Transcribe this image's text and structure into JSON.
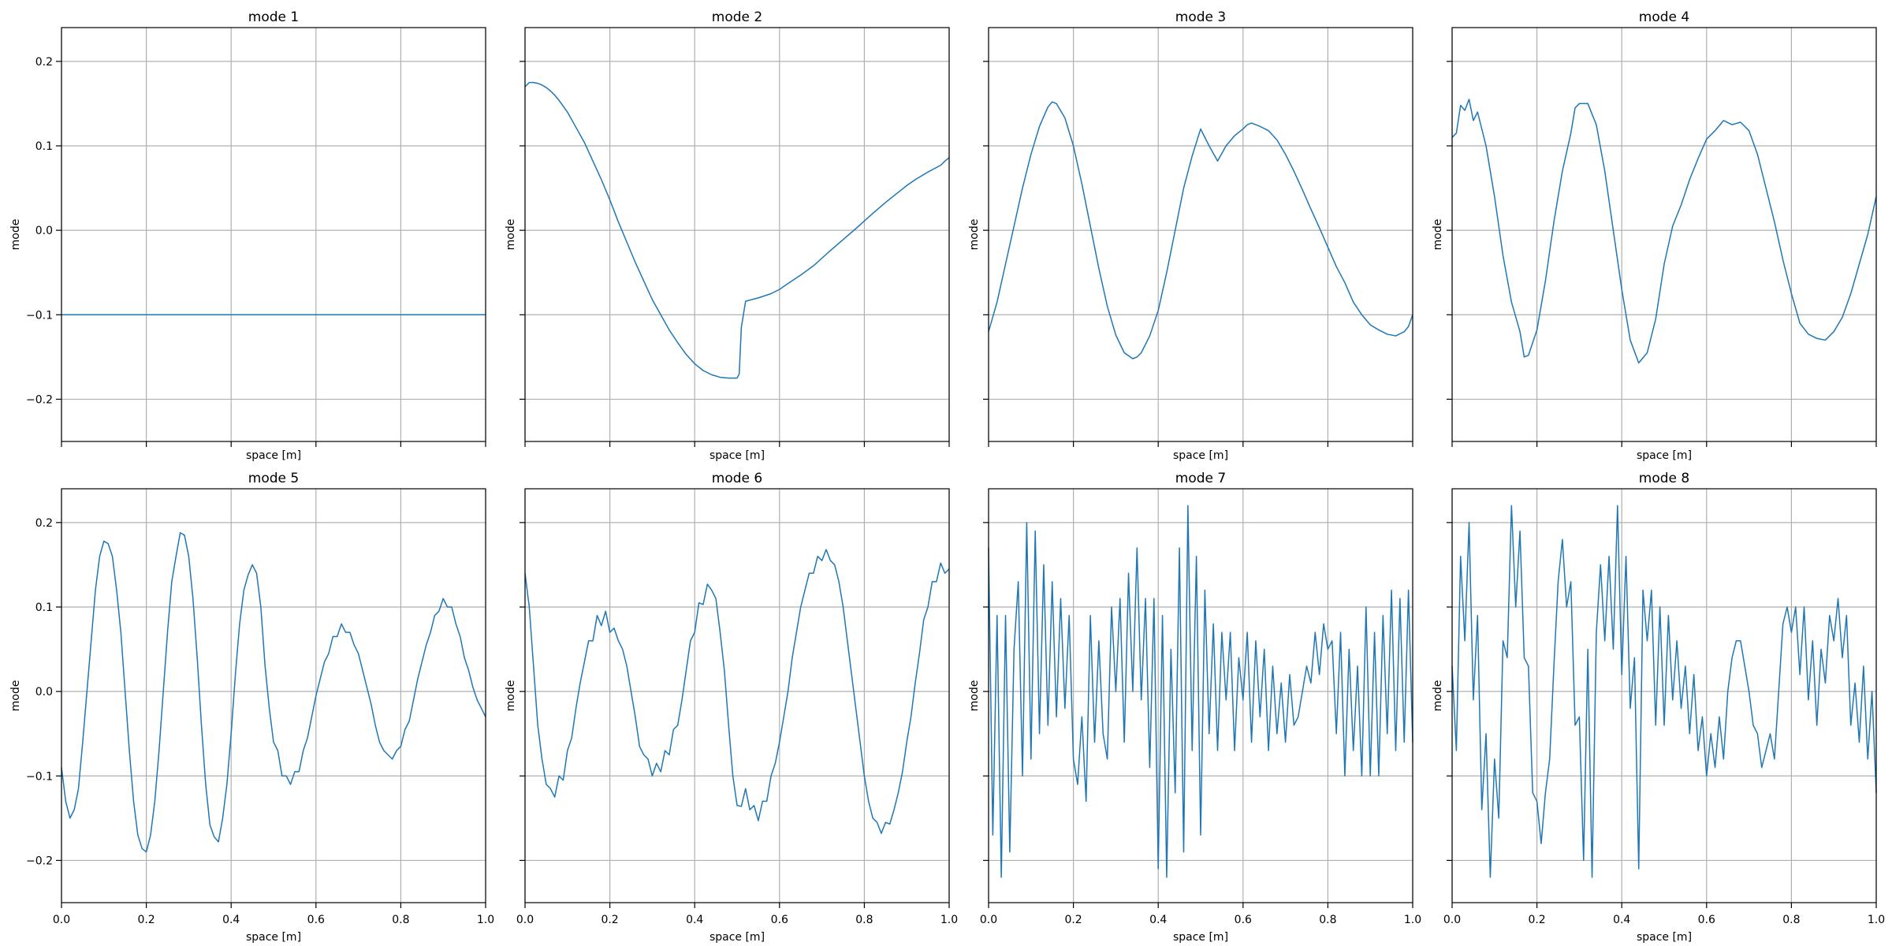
{
  "figure": {
    "layout": "2 rows x 4 columns, shared x and y axes",
    "line_color": "#1f77b4",
    "grid": true,
    "xlim": [
      0.0,
      1.0
    ],
    "ylim": [
      -0.25,
      0.24
    ],
    "xticks": [
      0.0,
      0.2,
      0.4,
      0.6,
      0.8,
      1.0
    ],
    "xtick_labels": [
      "0.0",
      "0.2",
      "0.4",
      "0.6",
      "0.8",
      "1.0"
    ],
    "yticks": [
      -0.2,
      -0.1,
      0.0,
      0.1,
      0.2
    ],
    "ytick_labels": [
      "−0.2",
      "−0.1",
      "0.0",
      "0.1",
      "0.2"
    ]
  },
  "chart_data": [
    {
      "type": "line",
      "title": "mode 1",
      "xlabel": "space [m]",
      "ylabel": "mode",
      "x": [
        0.0,
        0.05,
        0.1,
        0.15,
        0.2,
        0.25,
        0.3,
        0.35,
        0.4,
        0.45,
        0.5,
        0.55,
        0.6,
        0.65,
        0.7,
        0.75,
        0.8,
        0.85,
        0.9,
        0.95,
        1.0
      ],
      "y": [
        -0.1,
        -0.1,
        -0.1,
        -0.1,
        -0.1,
        -0.1,
        -0.1,
        -0.1,
        -0.1,
        -0.1,
        -0.1,
        -0.1,
        -0.1,
        -0.1,
        -0.1,
        -0.1,
        -0.1,
        -0.1,
        -0.1,
        -0.1,
        -0.1
      ]
    },
    {
      "type": "line",
      "title": "mode 2",
      "xlabel": "space [m]",
      "ylabel": "mode",
      "x": [
        0.0,
        0.01,
        0.02,
        0.03,
        0.04,
        0.05,
        0.06,
        0.07,
        0.08,
        0.1,
        0.12,
        0.14,
        0.16,
        0.18,
        0.2,
        0.22,
        0.24,
        0.26,
        0.28,
        0.3,
        0.32,
        0.34,
        0.36,
        0.38,
        0.4,
        0.42,
        0.44,
        0.46,
        0.48,
        0.5,
        0.505,
        0.51,
        0.52,
        0.55,
        0.58,
        0.6,
        0.62,
        0.65,
        0.68,
        0.7,
        0.72,
        0.75,
        0.78,
        0.8,
        0.82,
        0.85,
        0.88,
        0.9,
        0.92,
        0.95,
        0.98,
        0.99,
        1.0
      ],
      "y": [
        0.17,
        0.175,
        0.175,
        0.174,
        0.172,
        0.169,
        0.165,
        0.16,
        0.154,
        0.14,
        0.122,
        0.104,
        0.082,
        0.06,
        0.036,
        0.01,
        -0.014,
        -0.038,
        -0.06,
        -0.082,
        -0.1,
        -0.118,
        -0.133,
        -0.147,
        -0.158,
        -0.166,
        -0.171,
        -0.174,
        -0.175,
        -0.175,
        -0.17,
        -0.115,
        -0.084,
        -0.08,
        -0.075,
        -0.07,
        -0.063,
        -0.053,
        -0.042,
        -0.033,
        -0.024,
        -0.011,
        0.002,
        0.011,
        0.02,
        0.033,
        0.045,
        0.053,
        0.06,
        0.069,
        0.077,
        0.082,
        0.086
      ]
    },
    {
      "type": "line",
      "title": "mode 3",
      "xlabel": "space [m]",
      "ylabel": "mode",
      "x": [
        0.0,
        0.02,
        0.04,
        0.06,
        0.08,
        0.1,
        0.12,
        0.14,
        0.15,
        0.16,
        0.18,
        0.2,
        0.22,
        0.24,
        0.26,
        0.28,
        0.3,
        0.32,
        0.34,
        0.35,
        0.36,
        0.38,
        0.4,
        0.42,
        0.44,
        0.46,
        0.48,
        0.5,
        0.52,
        0.54,
        0.56,
        0.58,
        0.6,
        0.61,
        0.62,
        0.64,
        0.66,
        0.68,
        0.7,
        0.72,
        0.74,
        0.76,
        0.78,
        0.8,
        0.82,
        0.84,
        0.86,
        0.88,
        0.9,
        0.92,
        0.94,
        0.96,
        0.98,
        0.99,
        1.0
      ],
      "y": [
        -0.12,
        -0.085,
        -0.04,
        0.005,
        0.05,
        0.09,
        0.123,
        0.146,
        0.152,
        0.15,
        0.133,
        0.1,
        0.055,
        0.005,
        -0.045,
        -0.09,
        -0.124,
        -0.145,
        -0.152,
        -0.15,
        -0.145,
        -0.125,
        -0.095,
        -0.05,
        0.0,
        0.05,
        0.088,
        0.12,
        0.1,
        0.082,
        0.1,
        0.112,
        0.12,
        0.125,
        0.127,
        0.123,
        0.118,
        0.107,
        0.09,
        0.07,
        0.048,
        0.025,
        0.003,
        -0.02,
        -0.043,
        -0.062,
        -0.085,
        -0.1,
        -0.112,
        -0.118,
        -0.123,
        -0.125,
        -0.12,
        -0.114,
        -0.1
      ]
    },
    {
      "type": "line",
      "title": "mode 4",
      "xlabel": "space [m]",
      "ylabel": "mode",
      "x": [
        0.0,
        0.01,
        0.02,
        0.03,
        0.04,
        0.05,
        0.06,
        0.08,
        0.1,
        0.12,
        0.14,
        0.16,
        0.17,
        0.18,
        0.2,
        0.22,
        0.24,
        0.26,
        0.28,
        0.29,
        0.3,
        0.32,
        0.34,
        0.36,
        0.38,
        0.4,
        0.42,
        0.44,
        0.46,
        0.48,
        0.5,
        0.52,
        0.54,
        0.56,
        0.58,
        0.6,
        0.62,
        0.64,
        0.66,
        0.68,
        0.7,
        0.72,
        0.74,
        0.76,
        0.78,
        0.8,
        0.82,
        0.84,
        0.86,
        0.88,
        0.9,
        0.92,
        0.94,
        0.96,
        0.98,
        1.0
      ],
      "y": [
        0.11,
        0.115,
        0.148,
        0.142,
        0.155,
        0.13,
        0.14,
        0.1,
        0.04,
        -0.03,
        -0.085,
        -0.12,
        -0.15,
        -0.148,
        -0.118,
        -0.06,
        0.01,
        0.07,
        0.115,
        0.145,
        0.15,
        0.15,
        0.125,
        0.07,
        0.0,
        -0.07,
        -0.13,
        -0.157,
        -0.145,
        -0.105,
        -0.04,
        0.005,
        0.03,
        0.06,
        0.085,
        0.108,
        0.118,
        0.13,
        0.125,
        0.128,
        0.118,
        0.09,
        0.05,
        0.01,
        -0.035,
        -0.075,
        -0.11,
        -0.123,
        -0.128,
        -0.13,
        -0.12,
        -0.103,
        -0.075,
        -0.04,
        -0.005,
        0.04
      ]
    },
    {
      "type": "line",
      "title": "mode 5",
      "xlabel": "space [m]",
      "ylabel": "mode",
      "x": [
        0.0,
        0.01,
        0.02,
        0.03,
        0.04,
        0.05,
        0.06,
        0.07,
        0.08,
        0.09,
        0.1,
        0.11,
        0.12,
        0.13,
        0.14,
        0.15,
        0.16,
        0.17,
        0.18,
        0.19,
        0.2,
        0.21,
        0.22,
        0.23,
        0.24,
        0.25,
        0.26,
        0.27,
        0.28,
        0.29,
        0.3,
        0.31,
        0.32,
        0.33,
        0.34,
        0.35,
        0.36,
        0.37,
        0.38,
        0.39,
        0.4,
        0.41,
        0.42,
        0.43,
        0.44,
        0.45,
        0.46,
        0.47,
        0.48,
        0.49,
        0.5,
        0.51,
        0.52,
        0.53,
        0.54,
        0.55,
        0.56,
        0.57,
        0.58,
        0.59,
        0.6,
        0.61,
        0.62,
        0.63,
        0.64,
        0.65,
        0.66,
        0.67,
        0.68,
        0.69,
        0.7,
        0.71,
        0.72,
        0.73,
        0.74,
        0.75,
        0.76,
        0.77,
        0.78,
        0.79,
        0.8,
        0.81,
        0.82,
        0.83,
        0.84,
        0.85,
        0.86,
        0.87,
        0.88,
        0.89,
        0.9,
        0.91,
        0.92,
        0.93,
        0.94,
        0.95,
        0.96,
        0.97,
        0.98,
        0.99,
        1.0
      ],
      "y": [
        -0.09,
        -0.13,
        -0.15,
        -0.14,
        -0.115,
        -0.06,
        0.0,
        0.06,
        0.12,
        0.16,
        0.178,
        0.175,
        0.16,
        0.12,
        0.07,
        0.0,
        -0.07,
        -0.13,
        -0.17,
        -0.186,
        -0.19,
        -0.17,
        -0.13,
        -0.07,
        0.0,
        0.07,
        0.13,
        0.16,
        0.188,
        0.185,
        0.16,
        0.11,
        0.04,
        -0.04,
        -0.11,
        -0.158,
        -0.172,
        -0.178,
        -0.15,
        -0.11,
        -0.05,
        0.02,
        0.08,
        0.12,
        0.138,
        0.15,
        0.14,
        0.1,
        0.03,
        -0.02,
        -0.06,
        -0.07,
        -0.1,
        -0.1,
        -0.11,
        -0.095,
        -0.095,
        -0.07,
        -0.055,
        -0.03,
        -0.005,
        0.015,
        0.035,
        0.045,
        0.065,
        0.065,
        0.08,
        0.07,
        0.07,
        0.055,
        0.045,
        0.025,
        0.005,
        -0.015,
        -0.04,
        -0.06,
        -0.07,
        -0.075,
        -0.08,
        -0.07,
        -0.065,
        -0.045,
        -0.035,
        -0.01,
        0.015,
        0.035,
        0.055,
        0.07,
        0.09,
        0.095,
        0.11,
        0.1,
        0.1,
        0.08,
        0.065,
        0.04,
        0.025,
        0.005,
        -0.01,
        -0.02,
        -0.03
      ]
    },
    {
      "type": "line",
      "title": "mode 6",
      "xlabel": "space [m]",
      "ylabel": "mode",
      "x": [
        0.0,
        0.01,
        0.02,
        0.03,
        0.04,
        0.05,
        0.06,
        0.07,
        0.08,
        0.09,
        0.1,
        0.11,
        0.12,
        0.13,
        0.14,
        0.15,
        0.16,
        0.17,
        0.18,
        0.19,
        0.2,
        0.21,
        0.22,
        0.23,
        0.24,
        0.25,
        0.26,
        0.27,
        0.28,
        0.29,
        0.3,
        0.31,
        0.32,
        0.33,
        0.34,
        0.35,
        0.36,
        0.37,
        0.38,
        0.39,
        0.4,
        0.41,
        0.42,
        0.43,
        0.44,
        0.45,
        0.46,
        0.47,
        0.48,
        0.49,
        0.5,
        0.51,
        0.52,
        0.53,
        0.54,
        0.55,
        0.56,
        0.57,
        0.58,
        0.59,
        0.6,
        0.61,
        0.62,
        0.63,
        0.64,
        0.65,
        0.66,
        0.67,
        0.68,
        0.69,
        0.7,
        0.71,
        0.72,
        0.73,
        0.74,
        0.75,
        0.76,
        0.77,
        0.78,
        0.79,
        0.8,
        0.81,
        0.82,
        0.83,
        0.84,
        0.85,
        0.86,
        0.87,
        0.88,
        0.89,
        0.9,
        0.91,
        0.92,
        0.93,
        0.94,
        0.95,
        0.96,
        0.97,
        0.98,
        0.99,
        1.0
      ],
      "y": [
        0.14,
        0.1,
        0.03,
        -0.04,
        -0.08,
        -0.11,
        -0.115,
        -0.125,
        -0.1,
        -0.105,
        -0.07,
        -0.055,
        -0.02,
        0.01,
        0.035,
        0.06,
        0.06,
        0.09,
        0.078,
        0.095,
        0.07,
        0.075,
        0.06,
        0.05,
        0.03,
        0.0,
        -0.03,
        -0.065,
        -0.075,
        -0.08,
        -0.1,
        -0.085,
        -0.095,
        -0.07,
        -0.075,
        -0.045,
        -0.04,
        -0.01,
        0.025,
        0.06,
        0.07,
        0.105,
        0.103,
        0.127,
        0.12,
        0.11,
        0.07,
        0.025,
        -0.04,
        -0.1,
        -0.135,
        -0.136,
        -0.115,
        -0.14,
        -0.135,
        -0.153,
        -0.13,
        -0.13,
        -0.1,
        -0.085,
        -0.06,
        -0.03,
        0.0,
        0.04,
        0.07,
        0.1,
        0.12,
        0.14,
        0.14,
        0.16,
        0.155,
        0.168,
        0.155,
        0.15,
        0.13,
        0.1,
        0.06,
        0.02,
        -0.02,
        -0.06,
        -0.1,
        -0.13,
        -0.15,
        -0.155,
        -0.168,
        -0.155,
        -0.157,
        -0.14,
        -0.12,
        -0.095,
        -0.06,
        -0.03,
        0.01,
        0.045,
        0.085,
        0.1,
        0.13,
        0.13,
        0.152,
        0.14,
        0.145
      ]
    },
    {
      "type": "line",
      "title": "mode 7",
      "xlabel": "space [m]",
      "ylabel": "mode",
      "x": [
        0.0,
        0.01,
        0.02,
        0.03,
        0.04,
        0.05,
        0.06,
        0.07,
        0.08,
        0.09,
        0.1,
        0.11,
        0.12,
        0.13,
        0.14,
        0.15,
        0.16,
        0.17,
        0.18,
        0.19,
        0.2,
        0.21,
        0.22,
        0.23,
        0.24,
        0.25,
        0.26,
        0.27,
        0.28,
        0.29,
        0.3,
        0.31,
        0.32,
        0.33,
        0.34,
        0.35,
        0.36,
        0.37,
        0.38,
        0.39,
        0.4,
        0.41,
        0.42,
        0.43,
        0.44,
        0.45,
        0.46,
        0.47,
        0.48,
        0.49,
        0.5,
        0.51,
        0.52,
        0.53,
        0.54,
        0.55,
        0.56,
        0.57,
        0.58,
        0.59,
        0.6,
        0.61,
        0.62,
        0.63,
        0.64,
        0.65,
        0.66,
        0.67,
        0.68,
        0.69,
        0.7,
        0.71,
        0.72,
        0.73,
        0.74,
        0.75,
        0.76,
        0.77,
        0.78,
        0.79,
        0.8,
        0.81,
        0.82,
        0.83,
        0.84,
        0.85,
        0.86,
        0.87,
        0.88,
        0.89,
        0.9,
        0.91,
        0.92,
        0.93,
        0.94,
        0.95,
        0.96,
        0.97,
        0.98,
        0.99,
        1.0
      ],
      "y": [
        0.17,
        -0.17,
        0.09,
        -0.22,
        0.09,
        -0.19,
        0.05,
        0.13,
        -0.1,
        0.2,
        -0.08,
        0.19,
        -0.05,
        0.15,
        -0.04,
        0.13,
        -0.03,
        0.11,
        -0.02,
        0.09,
        -0.08,
        -0.11,
        -0.03,
        -0.13,
        0.09,
        -0.06,
        0.06,
        -0.05,
        -0.08,
        0.1,
        0.0,
        0.11,
        -0.06,
        0.14,
        0.0,
        0.17,
        -0.01,
        0.11,
        -0.09,
        0.11,
        -0.21,
        0.09,
        -0.22,
        0.05,
        -0.12,
        0.17,
        -0.19,
        0.22,
        -0.07,
        0.16,
        -0.17,
        0.12,
        -0.05,
        0.08,
        -0.07,
        0.07,
        -0.01,
        0.07,
        -0.07,
        0.04,
        -0.01,
        0.07,
        -0.06,
        0.06,
        -0.03,
        0.05,
        -0.07,
        0.03,
        -0.05,
        0.01,
        -0.06,
        0.02,
        -0.04,
        -0.03,
        0.0,
        0.03,
        0.01,
        0.07,
        0.02,
        0.08,
        0.05,
        0.06,
        -0.05,
        0.07,
        -0.1,
        0.05,
        -0.07,
        0.03,
        -0.1,
        0.1,
        -0.1,
        0.07,
        -0.1,
        0.09,
        -0.05,
        0.12,
        -0.07,
        0.11,
        -0.06,
        0.12,
        -0.06
      ]
    },
    {
      "type": "line",
      "title": "mode 8",
      "xlabel": "space [m]",
      "ylabel": "mode",
      "x": [
        0.0,
        0.01,
        0.02,
        0.03,
        0.04,
        0.05,
        0.06,
        0.07,
        0.08,
        0.09,
        0.1,
        0.11,
        0.12,
        0.13,
        0.14,
        0.15,
        0.16,
        0.17,
        0.18,
        0.19,
        0.2,
        0.21,
        0.22,
        0.23,
        0.24,
        0.25,
        0.26,
        0.27,
        0.28,
        0.29,
        0.3,
        0.31,
        0.32,
        0.33,
        0.34,
        0.35,
        0.36,
        0.37,
        0.38,
        0.39,
        0.4,
        0.41,
        0.42,
        0.43,
        0.44,
        0.45,
        0.46,
        0.47,
        0.48,
        0.49,
        0.5,
        0.51,
        0.52,
        0.53,
        0.54,
        0.55,
        0.56,
        0.57,
        0.58,
        0.59,
        0.6,
        0.61,
        0.62,
        0.63,
        0.64,
        0.65,
        0.66,
        0.67,
        0.68,
        0.69,
        0.7,
        0.71,
        0.72,
        0.73,
        0.74,
        0.75,
        0.76,
        0.77,
        0.78,
        0.79,
        0.8,
        0.81,
        0.82,
        0.83,
        0.84,
        0.85,
        0.86,
        0.87,
        0.88,
        0.89,
        0.9,
        0.91,
        0.92,
        0.93,
        0.94,
        0.95,
        0.96,
        0.97,
        0.98,
        0.99,
        1.0
      ],
      "y": [
        0.03,
        -0.07,
        0.16,
        0.06,
        0.2,
        -0.01,
        0.09,
        -0.14,
        -0.05,
        -0.22,
        -0.08,
        -0.15,
        0.06,
        0.04,
        0.22,
        0.1,
        0.19,
        0.04,
        0.03,
        -0.12,
        -0.13,
        -0.18,
        -0.12,
        -0.08,
        0.03,
        0.13,
        0.18,
        0.1,
        0.13,
        -0.04,
        -0.03,
        -0.2,
        0.05,
        -0.22,
        0.07,
        0.15,
        0.06,
        0.16,
        0.05,
        0.22,
        0.02,
        0.16,
        -0.02,
        0.04,
        -0.21,
        0.12,
        0.06,
        0.12,
        -0.04,
        0.1,
        -0.04,
        0.09,
        -0.01,
        0.06,
        -0.02,
        0.03,
        -0.05,
        0.02,
        -0.07,
        -0.03,
        -0.1,
        -0.05,
        -0.09,
        -0.03,
        -0.08,
        0.0,
        0.04,
        0.06,
        0.06,
        0.03,
        0.0,
        -0.04,
        -0.05,
        -0.09,
        -0.07,
        -0.05,
        -0.08,
        0.0,
        0.08,
        0.1,
        0.07,
        0.1,
        0.02,
        0.1,
        -0.01,
        0.06,
        -0.04,
        0.05,
        0.01,
        0.09,
        0.06,
        0.11,
        0.04,
        0.09,
        -0.04,
        0.01,
        -0.06,
        0.03,
        -0.08,
        0.0,
        -0.12
      ]
    }
  ]
}
